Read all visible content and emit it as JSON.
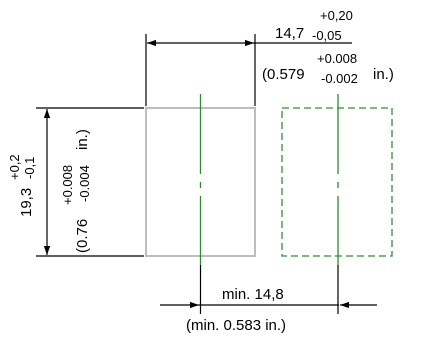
{
  "colors": {
    "line": "#000000",
    "component_outline": "#bdbdbd",
    "centerline": "#2e8b2e",
    "adjacent_outline": "#3a8a3a"
  },
  "width_dim": {
    "nominal": "14,7",
    "tol_plus": "+0,20",
    "tol_minus": "-0,05",
    "inch_open": "(0.579",
    "inch_tol_plus": "+0.008",
    "inch_tol_minus": "-0.002",
    "inch_close": "in.)"
  },
  "height_dim": {
    "nominal": "19,3",
    "tol_plus": "+0,2",
    "tol_minus": "-0,1",
    "inch_open": "(0.76",
    "inch_tol_plus": "+0.008",
    "inch_tol_minus": "-0.004",
    "inch_close": "in.)"
  },
  "pitch_dim": {
    "value": "min. 14,8",
    "inch": "(min.  0.583 in.)"
  }
}
